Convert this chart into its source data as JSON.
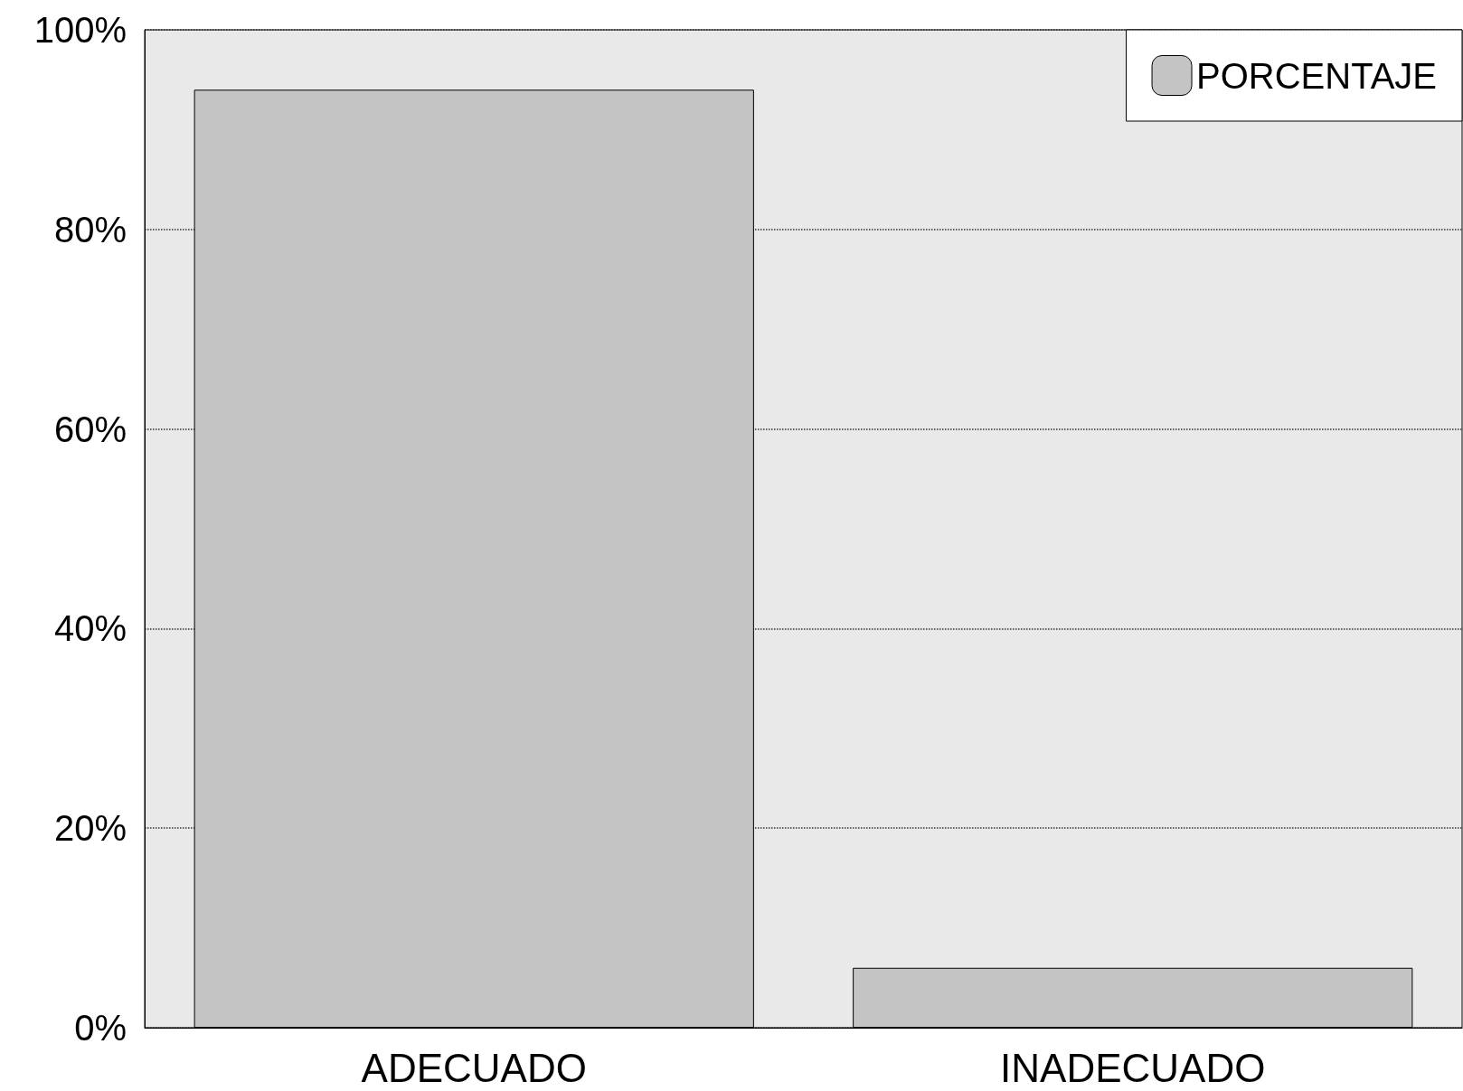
{
  "chart_data": {
    "type": "bar",
    "categories": [
      "ADECUADO",
      "INADECUADO"
    ],
    "series": [
      {
        "name": "PORCENTAJE",
        "color": "#c4c4c4",
        "values": [
          94,
          6
        ]
      }
    ],
    "ylim": [
      0,
      100
    ],
    "yticks": [
      {
        "value": 0,
        "label": "0%"
      },
      {
        "value": 20,
        "label": "20%"
      },
      {
        "value": 40,
        "label": "40%"
      },
      {
        "value": 60,
        "label": "60%"
      },
      {
        "value": 80,
        "label": "80%"
      },
      {
        "value": 100,
        "label": "100%"
      }
    ],
    "grid": "y",
    "legend": "top right"
  }
}
